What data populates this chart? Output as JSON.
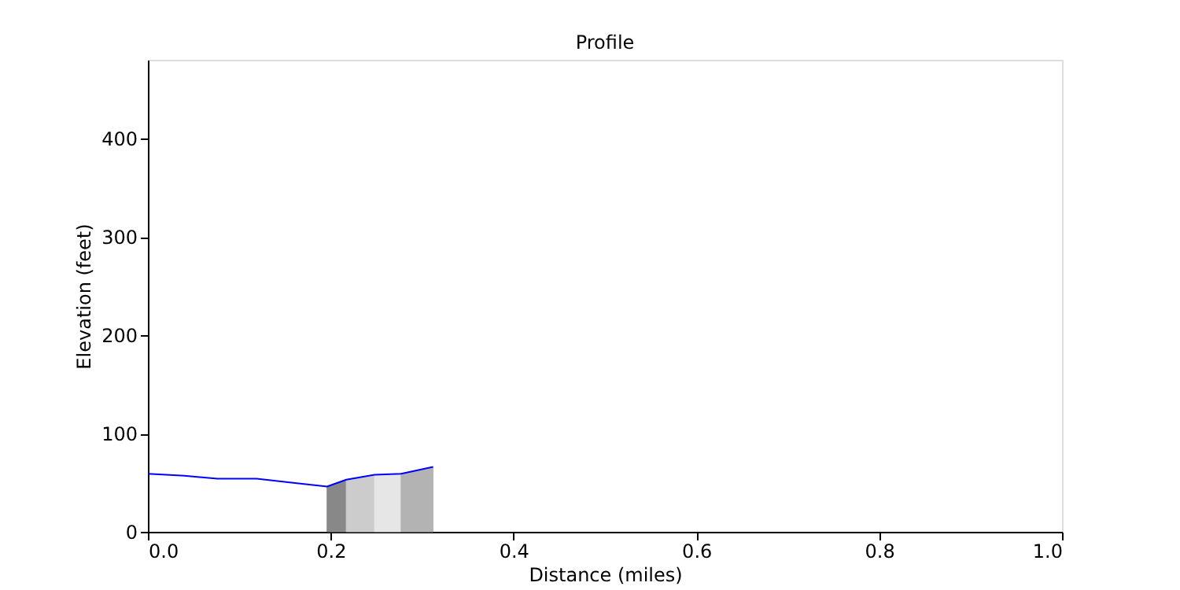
{
  "chart_data": {
    "type": "line",
    "title": "Profile",
    "xlabel": "Distance (miles)",
    "ylabel": "Elevation (feet)",
    "xlim": [
      0,
      1.0
    ],
    "xticks": [
      {
        "value": 0,
        "label": "0.0"
      },
      {
        "value": 0.2,
        "label": "0.2"
      },
      {
        "value": 0.4,
        "label": "0.4"
      },
      {
        "value": 0.6,
        "label": "0.6"
      },
      {
        "value": 0.8,
        "label": "0.8"
      },
      {
        "value": 1.0,
        "label": "1.0"
      }
    ],
    "ylim": [
      0,
      480
    ],
    "yticks": [
      0,
      100,
      200,
      300,
      400
    ],
    "grid": false,
    "series": [
      {
        "type": "area",
        "color": "#888888",
        "x": [
          0.196,
          0.217
        ],
        "values": [
          46,
          53
        ]
      },
      {
        "type": "area",
        "color": "#cccccc",
        "x": [
          0.217,
          0.248
        ],
        "values": [
          53,
          58
        ]
      },
      {
        "type": "area",
        "color": "#e6e6e6",
        "x": [
          0.248,
          0.277
        ],
        "values": [
          58,
          59
        ]
      },
      {
        "type": "area",
        "color": "#b3b3b3",
        "x": [
          0.277,
          0.312
        ],
        "values": [
          59,
          66
        ]
      },
      {
        "line_style": "solid",
        "color": "#0000ff",
        "x": [
          0,
          0.04,
          0.076,
          0.119,
          0.157,
          0.196,
          0.217,
          0.248,
          0.277,
          0.312
        ],
        "values": [
          59,
          57,
          54,
          54,
          50,
          46,
          53,
          58,
          59,
          66
        ]
      }
    ]
  }
}
